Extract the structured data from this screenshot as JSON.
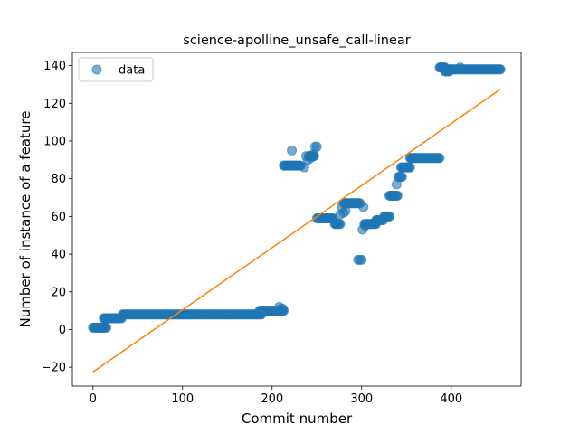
{
  "chart_data": {
    "type": "scatter",
    "title": "science-apolline_unsafe_call-linear",
    "xlabel": "Commit number",
    "ylabel": "Number of instance of a feature",
    "xlim": [
      -23,
      478
    ],
    "ylim": [
      -30,
      147
    ],
    "xticks": [
      0,
      100,
      200,
      300,
      400
    ],
    "yticks": [
      -20,
      0,
      20,
      40,
      60,
      80,
      100,
      120,
      140
    ],
    "grid": false,
    "legend": {
      "position": "top-left",
      "entries": [
        "data"
      ]
    },
    "colors": {
      "data": "#1f77b4",
      "fit": "#ff7f0e"
    },
    "series": [
      {
        "name": "data",
        "kind": "points",
        "segments": [
          {
            "x_start": 0,
            "x_end": 15,
            "y": 1
          },
          {
            "x_start": 12,
            "x_end": 32,
            "y": 6
          },
          {
            "x_start": 33,
            "x_end": 188,
            "y": 8
          },
          {
            "x_start": 186,
            "x_end": 213,
            "y": 10
          },
          {
            "x_start": 213,
            "x_end": 232,
            "y": 87
          },
          {
            "x_start": 241,
            "x_end": 247,
            "y": 92
          },
          {
            "x_start": 250,
            "x_end": 268,
            "y": 59
          },
          {
            "x_start": 270,
            "x_end": 276,
            "y": 56
          },
          {
            "x_start": 280,
            "x_end": 298,
            "y": 67
          },
          {
            "x_start": 303,
            "x_end": 316,
            "y": 56
          },
          {
            "x_start": 316,
            "x_end": 324,
            "y": 58
          },
          {
            "x_start": 325,
            "x_end": 331,
            "y": 60
          },
          {
            "x_start": 331,
            "x_end": 340,
            "y": 71
          },
          {
            "x_start": 341,
            "x_end": 345,
            "y": 81
          },
          {
            "x_start": 344,
            "x_end": 354,
            "y": 86
          },
          {
            "x_start": 354,
            "x_end": 387,
            "y": 91
          },
          {
            "x_start": 387,
            "x_end": 393,
            "y": 139
          },
          {
            "x_start": 393,
            "x_end": 398,
            "y": 137
          },
          {
            "x_start": 397,
            "x_end": 455,
            "y": 138
          }
        ],
        "points": [
          [
            208,
            12
          ],
          [
            210,
            11
          ],
          [
            212,
            11
          ],
          [
            222,
            95
          ],
          [
            236,
            86
          ],
          [
            238,
            92
          ],
          [
            240,
            90
          ],
          [
            243,
            91
          ],
          [
            246,
            93
          ],
          [
            248,
            97
          ],
          [
            250,
            97
          ],
          [
            276,
            61
          ],
          [
            278,
            65
          ],
          [
            280,
            62
          ],
          [
            282,
            63
          ],
          [
            296,
            37
          ],
          [
            298,
            37
          ],
          [
            300,
            37
          ],
          [
            301,
            53
          ],
          [
            302,
            65
          ],
          [
            304,
            55
          ],
          [
            339,
            77
          ],
          [
            410,
            139
          ]
        ]
      },
      {
        "name": "fit",
        "kind": "line",
        "x": [
          0,
          455
        ],
        "y": [
          -22.5,
          127.5
        ]
      }
    ]
  }
}
